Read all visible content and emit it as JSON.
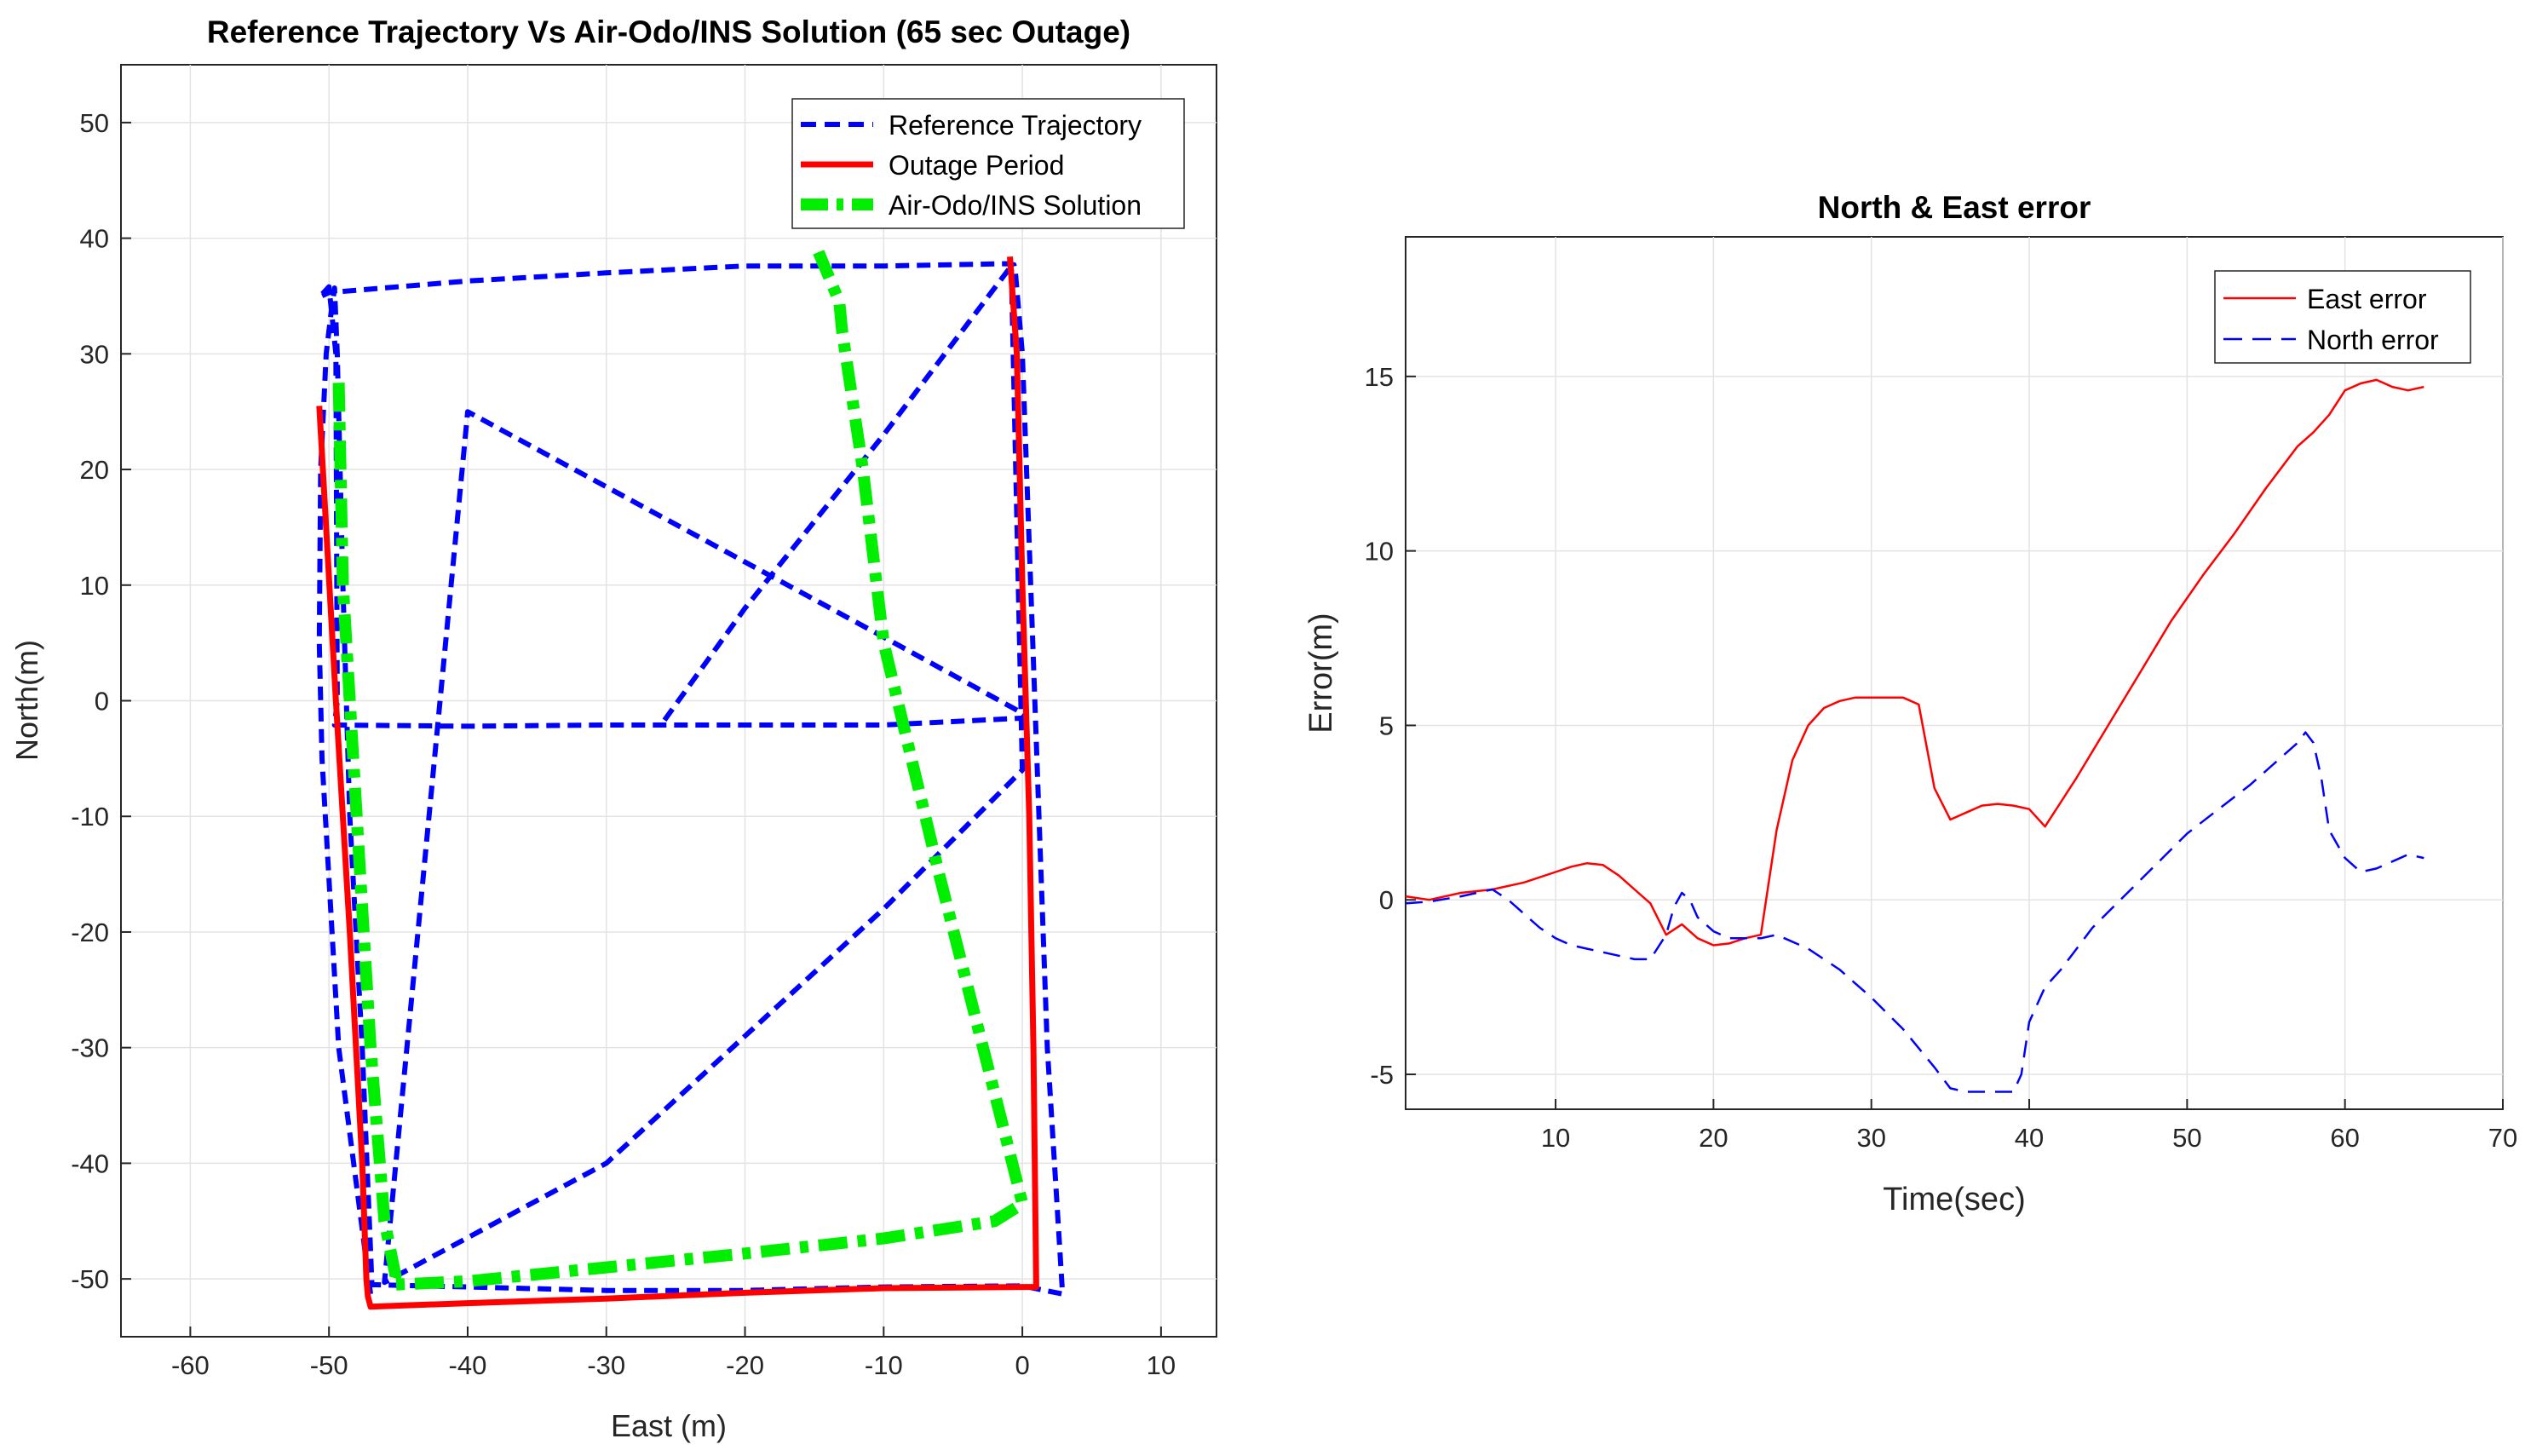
{
  "chart_data": [
    {
      "type": "line",
      "title": "Reference Trajectory Vs Air-Odo/INS Solution (65 sec Outage)",
      "xlabel": "East (m)",
      "ylabel": "North(m)",
      "xlim": [
        -65,
        14
      ],
      "ylim": [
        -55,
        55
      ],
      "xticks": [
        -60,
        -50,
        -40,
        -30,
        -20,
        -10,
        0,
        10
      ],
      "yticks": [
        -50,
        -40,
        -30,
        -20,
        -10,
        0,
        10,
        20,
        30,
        40,
        50
      ],
      "grid": true,
      "legend_position": "top-right",
      "series": [
        {
          "name": "Reference Trajectory",
          "color": "#0000ff",
          "style": "dashed",
          "x": [
            -47,
            -49.3,
            -50.5,
            -50.7,
            -50.6,
            -50.2,
            -49.8,
            -49.6,
            -49.6,
            -49.4,
            -49,
            -48.5,
            -47.6,
            -46.9,
            -40,
            -30,
            -20,
            -10,
            0,
            2.9,
            1.8,
            1.2,
            0.6,
            0,
            -0.5,
            -0.6,
            -1,
            -10,
            -20,
            -30,
            -40,
            -50,
            -50.7,
            -50,
            -49.5,
            -49.4,
            -49.6,
            -40,
            -30,
            -20,
            -10,
            0,
            0.2,
            -10,
            -20,
            -30,
            -40,
            -46,
            -30,
            -20,
            -10,
            0,
            -0.8,
            -10,
            -20,
            -26
          ],
          "y": [
            -51.3,
            -30,
            -5,
            5,
            20,
            30,
            34,
            35.6,
            35.7,
            30,
            10,
            -10,
            -30,
            -50.5,
            -50.7,
            -51,
            -51,
            -50.7,
            -50.6,
            -51.3,
            -30,
            -10,
            10,
            30,
            37,
            37.7,
            37.8,
            37.6,
            37.6,
            37,
            36.3,
            35.3,
            34.9,
            35.8,
            30,
            0,
            -2.1,
            -2.2,
            -2.1,
            -2.1,
            -2.1,
            -1.5,
            -1.2,
            5.5,
            12,
            18.5,
            25,
            -50.3,
            -40,
            -29,
            -18,
            -6,
            37.6,
            23,
            8,
            -2
          ],
          "legend_label": "Reference Trajectory"
        },
        {
          "name": "Outage Period",
          "color": "#ff0000",
          "style": "solid",
          "x": [
            -50.7,
            -49.5,
            -48.5,
            -47.6,
            -47.3,
            -47.2,
            -47,
            -40,
            -30,
            -20,
            -10,
            0,
            1,
            0.8,
            0.5,
            0,
            -0.4,
            -0.9
          ],
          "y": [
            25.5,
            0,
            -20,
            -40,
            -50,
            -51.5,
            -52.4,
            -52.1,
            -51.7,
            -51.2,
            -50.8,
            -50.7,
            -50.7,
            -30,
            -10,
            10,
            30,
            38.4
          ],
          "legend_label": "Outage Period"
        },
        {
          "name": "Air-Odo/INS Solution",
          "color": "#00ee00",
          "style": "dash-dot",
          "x": [
            -49.3,
            -49,
            -48,
            -47,
            -46,
            -45.2,
            -45.4,
            -40,
            -30,
            -20,
            -10,
            -2,
            0,
            -0.3,
            -6,
            -10,
            -11.5,
            -13,
            -13.2,
            -14.7
          ],
          "y": [
            27.5,
            10,
            -10,
            -30,
            -45,
            -49.7,
            -50.5,
            -50.2,
            -49,
            -47.8,
            -46.5,
            -45,
            -43.5,
            -42,
            -15,
            5,
            20,
            32,
            34.5,
            38.8
          ],
          "legend_label": "Air-Odo/INS Solution"
        }
      ]
    },
    {
      "type": "line",
      "title": "North & East error",
      "xlabel": "Time(sec)",
      "ylabel": "Error(m)",
      "xlim": [
        0.5,
        70
      ],
      "ylim": [
        -6,
        19
      ],
      "xticks": [
        10,
        20,
        30,
        40,
        50,
        60,
        70
      ],
      "yticks": [
        -5,
        0,
        5,
        10,
        15
      ],
      "grid": true,
      "legend_position": "top-right",
      "series": [
        {
          "name": "East error",
          "color": "#ff0000",
          "style": "solid",
          "x": [
            0.5,
            2,
            4,
            6,
            8,
            10,
            11,
            12,
            13,
            14,
            15,
            16,
            17,
            18,
            19,
            20,
            21,
            22,
            23,
            24,
            25,
            26,
            27,
            28,
            29,
            30,
            31,
            32,
            33,
            34,
            35,
            36,
            37,
            38,
            39,
            40,
            41,
            43,
            45,
            47,
            49,
            51,
            53,
            55,
            57,
            58,
            59,
            60,
            61,
            62,
            63,
            64,
            65
          ],
          "y": [
            0.1,
            0.0,
            0.2,
            0.3,
            0.5,
            0.8,
            0.95,
            1.05,
            1.0,
            0.7,
            0.3,
            -0.1,
            -1.0,
            -0.7,
            -1.1,
            -1.3,
            -1.25,
            -1.1,
            -1.0,
            2.0,
            4.0,
            5.0,
            5.5,
            5.7,
            5.8,
            5.8,
            5.8,
            5.8,
            5.6,
            3.2,
            2.3,
            2.5,
            2.7,
            2.75,
            2.7,
            2.6,
            2.1,
            3.5,
            5.0,
            6.5,
            8.0,
            9.3,
            10.5,
            11.8,
            13.0,
            13.4,
            13.9,
            14.6,
            14.8,
            14.9,
            14.7,
            14.6,
            14.7
          ],
          "legend_label": "East error"
        },
        {
          "name": "North error",
          "color": "#0000ff",
          "style": "dashed",
          "x": [
            0.5,
            2,
            4,
            6,
            7,
            8,
            9,
            10,
            11,
            12,
            13,
            14,
            15,
            16,
            17,
            17.5,
            18,
            18.5,
            19,
            20,
            21,
            22,
            23,
            24,
            26,
            28,
            30,
            32,
            34,
            35,
            36,
            37,
            38,
            39,
            39.5,
            40,
            41,
            42,
            44,
            46,
            48,
            50,
            52,
            54,
            56,
            57,
            57.5,
            58,
            58.5,
            59,
            60,
            61,
            62,
            63,
            64,
            65
          ],
          "y": [
            -0.1,
            -0.05,
            0.1,
            0.3,
            0.0,
            -0.4,
            -0.8,
            -1.1,
            -1.3,
            -1.4,
            -1.5,
            -1.6,
            -1.7,
            -1.7,
            -1.0,
            -0.2,
            0.2,
            0.0,
            -0.5,
            -0.9,
            -1.1,
            -1.1,
            -1.1,
            -1.0,
            -1.4,
            -2.0,
            -2.8,
            -3.7,
            -4.8,
            -5.4,
            -5.5,
            -5.5,
            -5.5,
            -5.5,
            -5.0,
            -3.5,
            -2.5,
            -2.0,
            -0.8,
            0.1,
            1.0,
            1.9,
            2.6,
            3.3,
            4.1,
            4.5,
            4.8,
            4.5,
            3.5,
            2.0,
            1.2,
            0.8,
            0.9,
            1.1,
            1.3,
            1.2
          ],
          "legend_label": "North error"
        }
      ]
    }
  ]
}
